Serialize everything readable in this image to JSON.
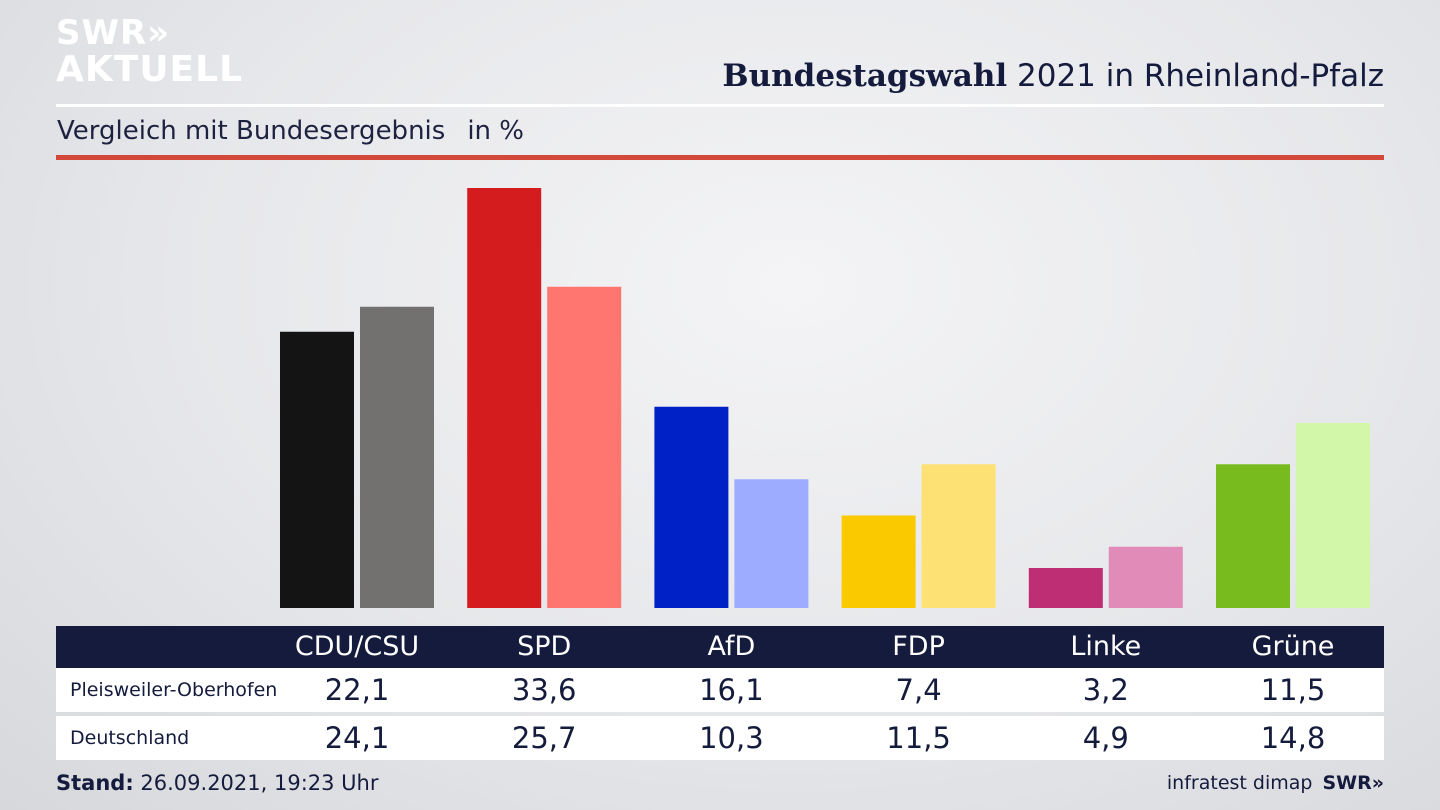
{
  "logo": {
    "line1": "SWR»",
    "line2": "AKTUELL"
  },
  "header": {
    "title_bold": "Bundestagswahl",
    "title_rest": " 2021 in Rheinland-Pfalz",
    "subtitle": "Vergleich mit Bundesergebnis",
    "unit": "in %"
  },
  "chart_data": {
    "type": "bar",
    "categories": [
      "CDU/CSU",
      "SPD",
      "AfD",
      "FDP",
      "Linke",
      "Grüne"
    ],
    "series": [
      {
        "name": "Pleisweiler-Oberhofen",
        "values": [
          22.1,
          33.6,
          16.1,
          7.4,
          3.2,
          11.5
        ]
      },
      {
        "name": "Deutschland",
        "values": [
          24.1,
          25.7,
          10.3,
          11.5,
          4.9,
          14.8
        ]
      }
    ],
    "colors": {
      "local": [
        "#141414",
        "#d41c1f",
        "#0021c6",
        "#fbc900",
        "#bd2e74",
        "#77bb1f"
      ],
      "national": [
        "#727170",
        "#ff7570",
        "#9eacff",
        "#fee174",
        "#e08bb8",
        "#d3f7a8"
      ]
    },
    "ylim": [
      0,
      34
    ],
    "title": "Bundestagswahl 2021 in Rheinland-Pfalz",
    "xlabel": "",
    "ylabel": ""
  },
  "table": {
    "row1": {
      "label": "Pleisweiler-Oberhofen",
      "values": [
        "22,1",
        "33,6",
        "16,1",
        "7,4",
        "3,2",
        "11,5"
      ]
    },
    "row2": {
      "label": "Deutschland",
      "values": [
        "24,1",
        "25,7",
        "10,3",
        "11,5",
        "4,9",
        "14,8"
      ]
    }
  },
  "footer": {
    "stand_label": "Stand:",
    "stand_value": " 26.09.2021, 19:23 Uhr",
    "source": "infratest dimap",
    "brand": "SWR»"
  }
}
